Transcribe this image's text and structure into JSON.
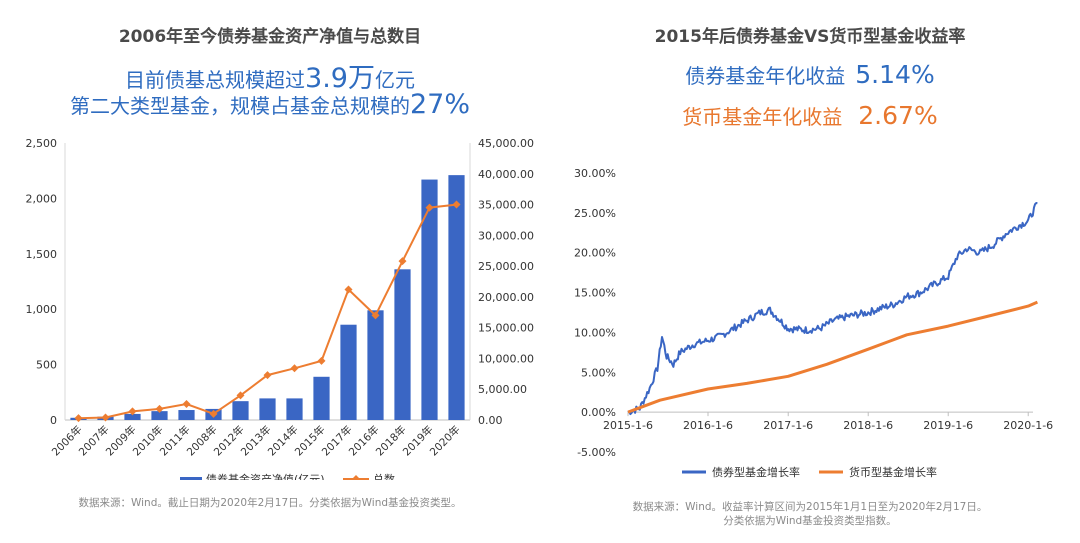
{
  "colors": {
    "blue": "#3a66c4",
    "orange": "#ed7d31",
    "blue_text": "#2f6cc0",
    "orange_text": "#e8772e"
  },
  "left": {
    "title": "2006年至今债券基金资产净值与总数目",
    "line1_prefix": "目前债基总规模超过",
    "line1_big": "3.9万",
    "line1_suffix": "亿元",
    "line2_prefix": "第二大类型基金，规模占基金总规模的",
    "line2_big": "27%",
    "source": "数据来源：Wind。截止日期为2020年2月17日。分类依据为Wind基金投资类型。"
  },
  "right": {
    "title": "2015年后债券基金VS货币型基金收益率",
    "line1_label": "债券基金年化收益",
    "line1_value": "5.14%",
    "line2_label": "货币基金年化收益",
    "line2_value": "2.67%",
    "source_line1": "数据来源：Wind。收益率计算区间为2015年1月1日至为2020年2月17日。",
    "source_line2": "分类依据为Wind基金投资类型指数。"
  },
  "chart_data": [
    {
      "type": "bar",
      "categories": [
        "2006年",
        "2007年",
        "2009年",
        "2010年",
        "2011年",
        "2008年",
        "2012年",
        "2013年",
        "2014年",
        "2015年",
        "2017年",
        "2016年",
        "2018年",
        "2019年",
        "2020年"
      ],
      "series": [
        {
          "name": "债券基金资产净值(亿元)",
          "type": "bar",
          "axis": "left",
          "values": [
            20,
            30,
            55,
            80,
            90,
            100,
            170,
            195,
            195,
            390,
            860,
            990,
            1360,
            2170,
            2210
          ]
        },
        {
          "name": "总数",
          "type": "line",
          "axis": "right",
          "values": [
            300,
            400,
            1400,
            1800,
            2600,
            1000,
            4000,
            7300,
            8400,
            9600,
            21200,
            17000,
            25800,
            34500,
            35000
          ]
        }
      ],
      "left_axis": {
        "min": 0,
        "max": 2500,
        "ticks": [
          "0",
          "500",
          "1,000",
          "1,500",
          "2,000",
          "2,500"
        ]
      },
      "right_axis": {
        "min": 0,
        "max": 45000,
        "ticks": [
          "0.00",
          "5,000.00",
          "10,000.00",
          "15,000.00",
          "20,000.00",
          "25,000.00",
          "30,000.00",
          "35,000.00",
          "40,000.00",
          "45,000.00"
        ]
      },
      "legend": [
        "债券基金资产净值(亿元)",
        "总数"
      ],
      "legend_position": "bottom"
    },
    {
      "type": "line",
      "x_range": [
        "2015-1-6",
        "2020-2-17"
      ],
      "x_ticks": [
        "2015-1-6",
        "2016-1-6",
        "2017-1-6",
        "2018-1-6",
        "2019-1-6",
        "2020-1-6"
      ],
      "ylim": [
        -5,
        30
      ],
      "y_ticks": [
        "-5.00%",
        "0.00%",
        "5.00%",
        "10.00%",
        "15.00%",
        "20.00%",
        "25.00%",
        "30.00%"
      ],
      "series": [
        {
          "name": "债券型基金增长率",
          "color": "#3a66c4",
          "points": [
            [
              "2015-1-6",
              0.0
            ],
            [
              "2015-3-1",
              0.5
            ],
            [
              "2015-4-15",
              3.0
            ],
            [
              "2015-5-20",
              5.5
            ],
            [
              "2015-6-10",
              9.5
            ],
            [
              "2015-7-1",
              7.0
            ],
            [
              "2015-8-1",
              6.0
            ],
            [
              "2015-9-1",
              7.5
            ],
            [
              "2015-10-1",
              8.0
            ],
            [
              "2015-11-1",
              8.5
            ],
            [
              "2016-1-6",
              9.0
            ],
            [
              "2016-3-1",
              9.5
            ],
            [
              "2016-5-1",
              10.5
            ],
            [
              "2016-7-1",
              11.5
            ],
            [
              "2016-9-1",
              12.5
            ],
            [
              "2016-10-15",
              12.8
            ],
            [
              "2016-12-1",
              11.5
            ],
            [
              "2017-1-6",
              10.5
            ],
            [
              "2017-4-1",
              10.3
            ],
            [
              "2017-6-1",
              10.5
            ],
            [
              "2017-8-1",
              11.5
            ],
            [
              "2017-10-1",
              12.0
            ],
            [
              "2018-1-6",
              12.5
            ],
            [
              "2018-3-1",
              13.0
            ],
            [
              "2018-5-1",
              13.5
            ],
            [
              "2018-7-1",
              14.5
            ],
            [
              "2018-9-1",
              15.0
            ],
            [
              "2018-11-1",
              16.0
            ],
            [
              "2019-1-6",
              17.0
            ],
            [
              "2019-2-15",
              19.5
            ],
            [
              "2019-4-1",
              20.5
            ],
            [
              "2019-6-1",
              20.0
            ],
            [
              "2019-8-1",
              21.0
            ],
            [
              "2019-10-1",
              22.5
            ],
            [
              "2019-12-1",
              23.5
            ],
            [
              "2020-1-6",
              24.0
            ],
            [
              "2020-2-17",
              26.2
            ]
          ]
        },
        {
          "name": "货币型基金增长率",
          "color": "#ed7d31",
          "points": [
            [
              "2015-1-6",
              0.0
            ],
            [
              "2015-6-1",
              1.5
            ],
            [
              "2016-1-6",
              2.9
            ],
            [
              "2016-7-1",
              3.6
            ],
            [
              "2017-1-6",
              4.5
            ],
            [
              "2017-7-1",
              6.0
            ],
            [
              "2018-1-6",
              7.9
            ],
            [
              "2018-7-1",
              9.7
            ],
            [
              "2019-1-6",
              10.8
            ],
            [
              "2019-7-1",
              12.0
            ],
            [
              "2020-1-6",
              13.3
            ],
            [
              "2020-2-17",
              13.8
            ]
          ]
        }
      ],
      "legend": [
        "债券型基金增长率",
        "货币型基金增长率"
      ],
      "legend_position": "bottom"
    }
  ]
}
